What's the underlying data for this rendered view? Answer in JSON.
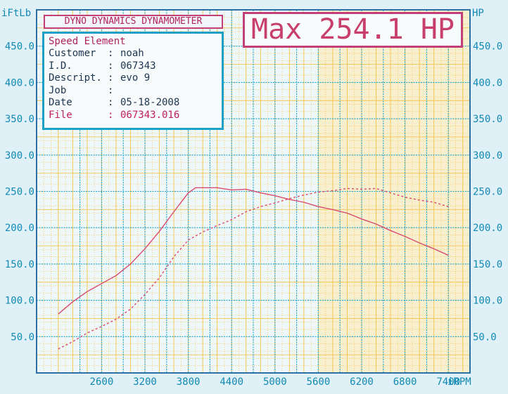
{
  "header": {
    "title": "DYNO DYNAMICS DYNAMOMETER"
  },
  "info": {
    "title": "Speed Element",
    "rows": [
      {
        "label": "Customer",
        "sep": ":",
        "value": "noah"
      },
      {
        "label": "I.D.",
        "sep": ":",
        "value": "067343"
      },
      {
        "label": "Descript.",
        "sep": ":",
        "value": "evo 9"
      },
      {
        "label": "Job",
        "sep": ":",
        "value": ""
      },
      {
        "label": "Date",
        "sep": ":",
        "value": "05-18-2008"
      },
      {
        "label": "File",
        "sep": ":",
        "value": "067343.016"
      }
    ]
  },
  "max_label": "Max 254.1 HP",
  "colors": {
    "background": "#dff1f7",
    "grid_blue": "#1aa6d6",
    "grid_yellow": "#f4c44e",
    "frame": "#2c6fa5",
    "label": "#1289b5",
    "curve": "#d94b70"
  },
  "chart_data": {
    "type": "line",
    "left_axis_label": "iFtLb",
    "right_axis_label": "HP",
    "x_unit_label": "iRPM",
    "xlim": [
      1700,
      7700
    ],
    "ylim": [
      0,
      500
    ],
    "x_ticks": [
      2600,
      3200,
      3800,
      4400,
      5000,
      5600,
      6200,
      6800,
      7400
    ],
    "y_ticks": [
      50,
      100,
      150,
      200,
      250,
      300,
      350,
      400,
      450
    ],
    "y_tick_labels": [
      "50.0",
      "100.0",
      "150.0",
      "200.0",
      "250.0",
      "300.0",
      "350.0",
      "400.0",
      "450.0"
    ],
    "grid": true,
    "series": [
      {
        "style": "solid",
        "x": [
          2000,
          2200,
          2400,
          2600,
          2800,
          3000,
          3200,
          3400,
          3600,
          3800,
          3900,
          4000,
          4200,
          4400,
          4600,
          4800,
          5000,
          5200,
          5400,
          5600,
          5800,
          6000,
          6200,
          6400,
          6600,
          6800,
          7000,
          7200,
          7400
        ],
        "values": [
          81,
          98,
          112,
          123,
          134,
          150,
          171,
          195,
          222,
          248,
          255,
          255,
          255,
          252,
          253,
          248,
          244,
          239,
          235,
          229,
          225,
          220,
          212,
          205,
          196,
          188,
          179,
          171,
          162
        ]
      },
      {
        "style": "dashed",
        "x": [
          2000,
          2200,
          2400,
          2600,
          2800,
          3000,
          3200,
          3400,
          3600,
          3800,
          4000,
          4200,
          4400,
          4600,
          4800,
          5000,
          5200,
          5400,
          5600,
          5800,
          6000,
          6200,
          6400,
          6600,
          6800,
          7000,
          7200,
          7400
        ],
        "values": [
          33,
          43,
          55,
          64,
          74,
          88,
          108,
          131,
          160,
          183,
          194,
          203,
          211,
          222,
          229,
          234,
          240,
          245,
          249,
          251,
          254,
          253,
          254,
          248,
          242,
          238,
          235,
          229
        ]
      }
    ]
  }
}
